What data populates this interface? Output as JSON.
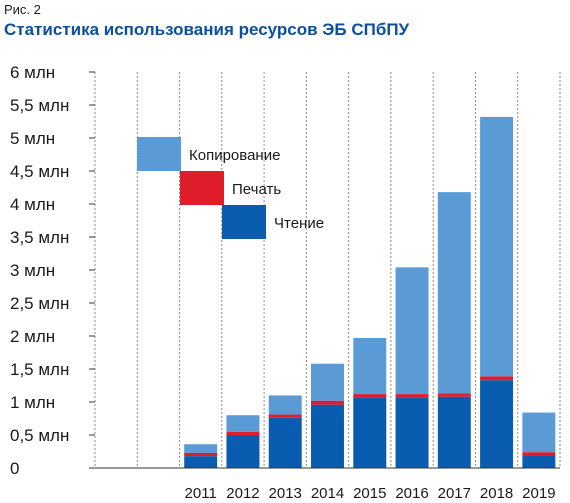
{
  "figure_label": "Рис. 2",
  "title": "Статистика использования ресурсов ЭБ СПбПУ",
  "chart_data": {
    "type": "bar",
    "stacked": true,
    "title": "Статистика использования ресурсов ЭБ СПбПУ",
    "xlabel": "",
    "ylabel": "",
    "categories": [
      "",
      "",
      "2011",
      "2012",
      "2013",
      "2014",
      "2015",
      "2016",
      "2017",
      "2018",
      "2019"
    ],
    "ylim": [
      0,
      6
    ],
    "yticks": [
      {
        "value": 0,
        "label": "0"
      },
      {
        "value": 0.5,
        "label": "0,5 млн"
      },
      {
        "value": 1,
        "label": "1    млн"
      },
      {
        "value": 1.5,
        "label": "1,5 млн"
      },
      {
        "value": 2,
        "label": "2    млн"
      },
      {
        "value": 2.5,
        "label": "2,5 млн"
      },
      {
        "value": 3,
        "label": "3    млн"
      },
      {
        "value": 3.5,
        "label": "3,5 млн"
      },
      {
        "value": 4,
        "label": "4    млн"
      },
      {
        "value": 4.5,
        "label": "4,5 млн"
      },
      {
        "value": 5,
        "label": "5    млн"
      },
      {
        "value": 5.5,
        "label": "5,5 млн"
      },
      {
        "value": 6,
        "label": "6    млн"
      }
    ],
    "series": [
      {
        "name": "Чтение",
        "color": "#0a5cb0",
        "values": [
          0,
          0,
          0.18,
          0.5,
          0.76,
          0.96,
          1.07,
          1.07,
          1.08,
          1.33,
          0.19
        ]
      },
      {
        "name": "Печать",
        "color": "#e01e2b",
        "values": [
          0,
          0,
          0.05,
          0.05,
          0.05,
          0.06,
          0.05,
          0.05,
          0.05,
          0.06,
          0.05
        ]
      },
      {
        "name": "Копирование",
        "color": "#5b9bd5",
        "values": [
          0,
          0,
          0.13,
          0.25,
          0.29,
          0.56,
          0.85,
          1.92,
          3.05,
          3.93,
          0.6
        ]
      }
    ],
    "legend": {
      "position": "upper-left",
      "order": [
        "Копирование",
        "Печать",
        "Чтение"
      ]
    },
    "grid": {
      "vertical": true,
      "horizontal": false
    }
  }
}
